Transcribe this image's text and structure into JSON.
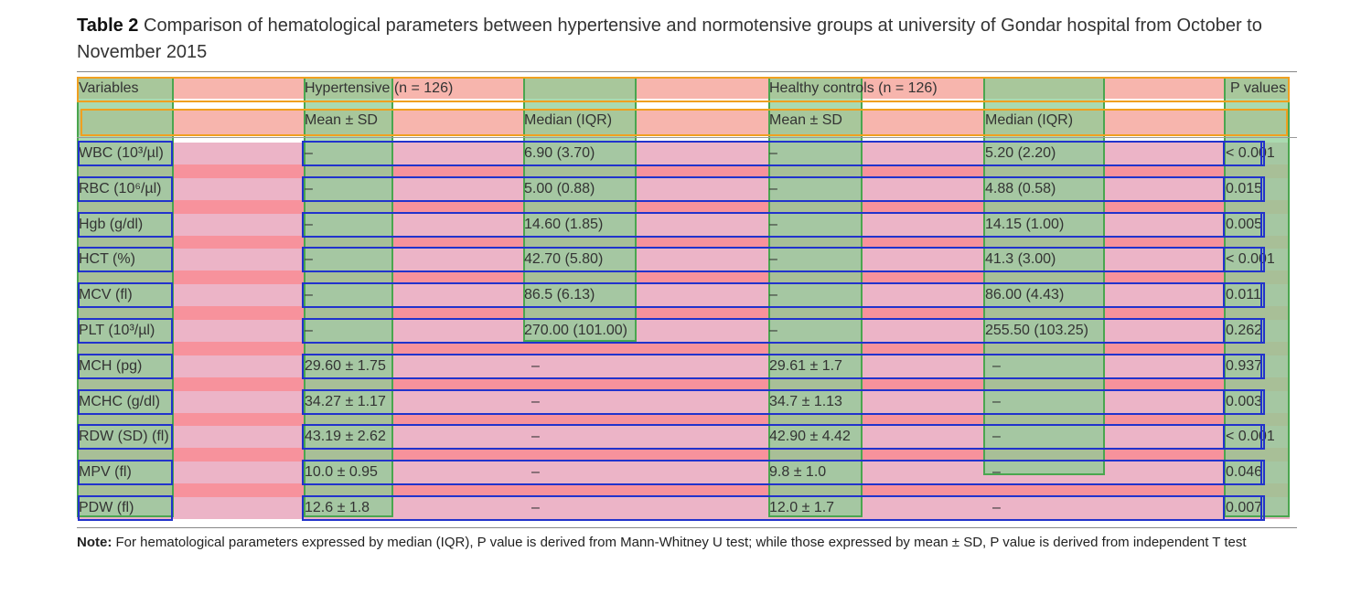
{
  "title": {
    "label": "Table 2",
    "text": "Comparison of hematological parameters between hypertensive and normotensive groups at university of Gondar hospital from October to November 2015"
  },
  "header": {
    "variables": "Variables",
    "group1": "Hypertensive (n = 126)",
    "group2": "Healthy controls (n = 126)",
    "pvalues": "P values",
    "mean_sd": "Mean ± SD",
    "median_iqr": "Median (IQR)"
  },
  "rows": [
    {
      "variable": "WBC (10³/µl)",
      "g1_mean": "–",
      "g1_median": "6.90 (3.70)",
      "g2_mean": "–",
      "g2_median": "5.20 (2.20)",
      "p": "< 0.001"
    },
    {
      "variable": "RBC (10⁶/µl)",
      "g1_mean": "–",
      "g1_median": "5.00 (0.88)",
      "g2_mean": "–",
      "g2_median": "4.88 (0.58)",
      "p": "0.015"
    },
    {
      "variable": "Hgb (g/dl)",
      "g1_mean": "–",
      "g1_median": "14.60 (1.85)",
      "g2_mean": "–",
      "g2_median": "14.15 (1.00)",
      "p": "0.005"
    },
    {
      "variable": "HCT (%)",
      "g1_mean": "–",
      "g1_median": "42.70 (5.80)",
      "g2_mean": "–",
      "g2_median": "41.3 (3.00)",
      "p": "< 0.001"
    },
    {
      "variable": "MCV (fl)",
      "g1_mean": "–",
      "g1_median": "86.5 (6.13)",
      "g2_mean": "–",
      "g2_median": "86.00 (4.43)",
      "p": "0.011"
    },
    {
      "variable": "PLT (10³/µl)",
      "g1_mean": "–",
      "g1_median": "270.00 (101.00)",
      "g2_mean": "–",
      "g2_median": "255.50 (103.25)",
      "p": "0.262"
    },
    {
      "variable": "MCH (pg)",
      "g1_mean": "29.60 ± 1.75",
      "g1_median": "–",
      "g2_mean": "29.61 ± 1.7",
      "g2_median": "–",
      "p": "0.937"
    },
    {
      "variable": "MCHC (g/dl)",
      "g1_mean": "34.27 ± 1.17",
      "g1_median": "–",
      "g2_mean": "34.7 ± 1.13",
      "g2_median": "–",
      "p": "0.003"
    },
    {
      "variable": "RDW (SD) (fl)",
      "g1_mean": "43.19 ± 2.62",
      "g1_median": "–",
      "g2_mean": "42.90 ± 4.42",
      "g2_median": "–",
      "p": "< 0.001"
    },
    {
      "variable": "MPV (fl)",
      "g1_mean": "10.0 ± 0.95",
      "g1_median": "–",
      "g2_mean": "9.8 ± 1.0",
      "g2_median": "–",
      "p": "0.046"
    },
    {
      "variable": "PDW (fl)",
      "g1_mean": "12.6 ± 1.8",
      "g1_median": "–",
      "g2_mean": "12.0 ± 1.7",
      "g2_median": "–",
      "p": "0.007"
    }
  ],
  "note": {
    "label": "Note:",
    "text": "For hematological parameters expressed by median (IQR), P value is derived from Mann-Whitney U test; while those expressed by mean ± SD, P value is derived from independent T test"
  },
  "colors": {
    "header_band": "#f7b5ad",
    "row_band": "#ecb4c7",
    "gap_band": "#f7929c",
    "column_overlay": "#8ecd96",
    "box_blue": "#2233cc",
    "box_orange": "#f0a020"
  }
}
